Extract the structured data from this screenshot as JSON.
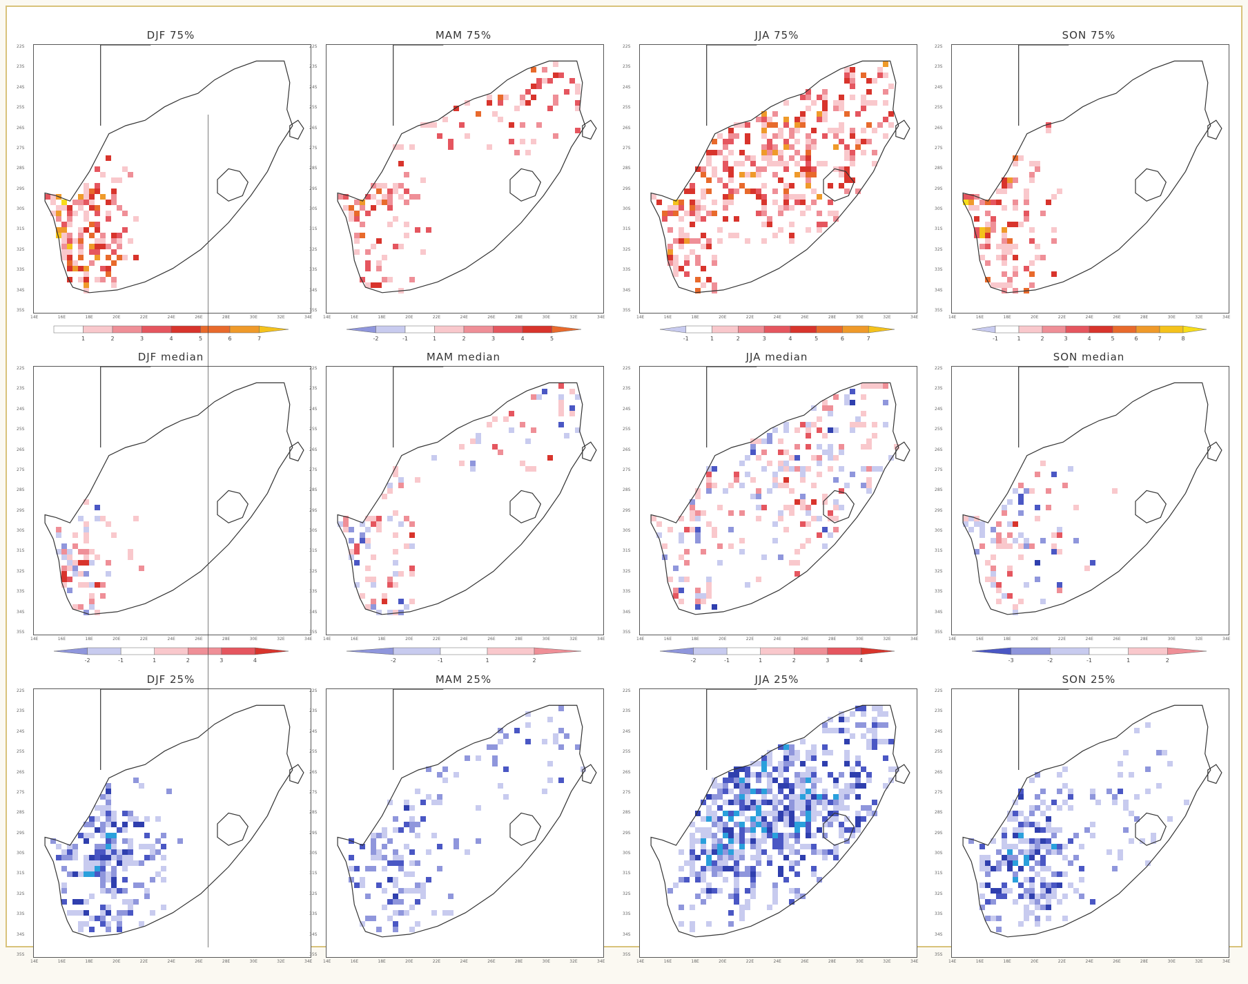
{
  "panels": [
    {
      "title": "DJF  75%",
      "palette": "warm",
      "key": "djf75",
      "cbar": {
        "labels": [
          "1",
          "2",
          "3",
          "4",
          "5",
          "6",
          "7"
        ],
        "neg": 0,
        "pos": 7,
        "seam": true
      }
    },
    {
      "title": "MAM  75%",
      "palette": "warm",
      "key": "mam75",
      "cbar": {
        "labels": [
          "-2",
          "-1",
          "1",
          "2",
          "3",
          "4",
          "5"
        ],
        "neg": 2,
        "pos": 5
      }
    },
    {
      "title": "JJA  75%",
      "palette": "warm",
      "key": "jja75",
      "cbar": {
        "labels": [
          "-1",
          "1",
          "2",
          "3",
          "4",
          "5",
          "6",
          "7"
        ],
        "neg": 1,
        "pos": 7
      }
    },
    {
      "title": "SON  75%",
      "palette": "warm",
      "key": "son75",
      "cbar": {
        "labels": [
          "-1",
          "1",
          "2",
          "3",
          "4",
          "5",
          "6",
          "7",
          "8"
        ],
        "neg": 1,
        "pos": 8
      }
    },
    {
      "title": "DJF  median",
      "palette": "mixed",
      "key": "djfmed",
      "cbar": {
        "labels": [
          "-2",
          "-1",
          "1",
          "2",
          "3",
          "4"
        ],
        "neg": 2,
        "pos": 4
      }
    },
    {
      "title": "MAM  median",
      "palette": "mixed",
      "key": "mammed",
      "cbar": {
        "labels": [
          "-2",
          "-1",
          "1",
          "2"
        ],
        "neg": 2,
        "pos": 2
      }
    },
    {
      "title": "JJA  median",
      "palette": "mixed",
      "key": "jjamed",
      "cbar": {
        "labels": [
          "-2",
          "-1",
          "1",
          "2",
          "3",
          "4"
        ],
        "neg": 2,
        "pos": 4
      }
    },
    {
      "title": "SON  median",
      "palette": "mixed",
      "key": "sonmed",
      "cbar": {
        "labels": [
          "-3",
          "-2",
          "-1",
          "1",
          "2"
        ],
        "neg": 3,
        "pos": 2
      }
    },
    {
      "title": "DJF  25%",
      "palette": "cool",
      "key": "djf25"
    },
    {
      "title": "MAM  25%",
      "palette": "cool",
      "key": "mam25"
    },
    {
      "title": "JJA  25%",
      "palette": "cool",
      "key": "jja25"
    },
    {
      "title": "SON  25%",
      "palette": "cool",
      "key": "son25"
    }
  ],
  "lat_ticks": [
    "22S",
    "23S",
    "24S",
    "25S",
    "26S",
    "27S",
    "28S",
    "29S",
    "30S",
    "31S",
    "32S",
    "33S",
    "34S",
    "35S"
  ],
  "lon_ticks": [
    "14E",
    "16E",
    "18E",
    "20E",
    "22E",
    "24E",
    "26E",
    "28E",
    "30E",
    "32E",
    "34E"
  ],
  "colors": {
    "warm": [
      "#f9c8cc",
      "#ef8f97",
      "#e5565f",
      "#d8342c",
      "#e86a2c",
      "#ef9a2a",
      "#f4c21c",
      "#f7dd1a"
    ],
    "cool": [
      "#c8cbef",
      "#8f96dc",
      "#4a57c4",
      "#2f3fae",
      "#2aa0dc"
    ]
  }
}
